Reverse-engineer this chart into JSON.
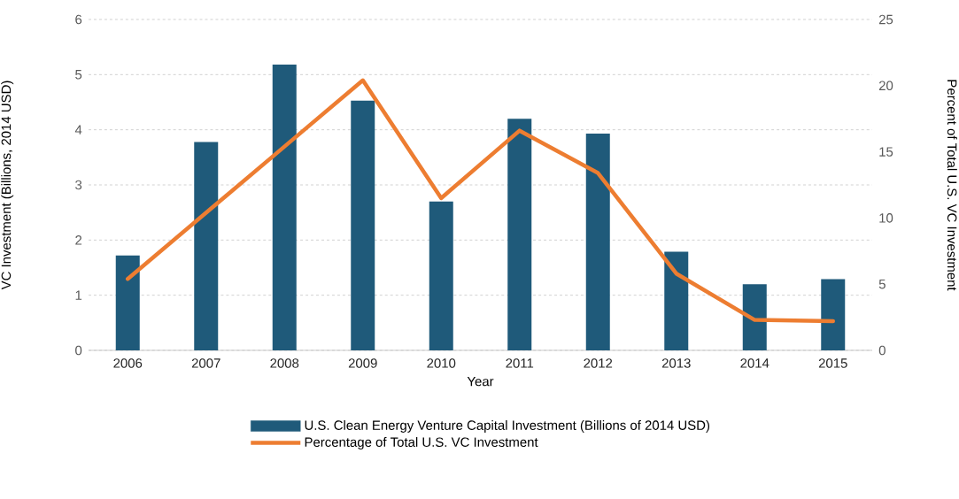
{
  "chart_data": {
    "type": "bar",
    "xlabel": "Year",
    "ylabel": "VC Investment (Billions, 2014 USD)",
    "y2label": "Percent of Total U.S. VC Investment",
    "categories": [
      "2006",
      "2007",
      "2008",
      "2009",
      "2010",
      "2011",
      "2012",
      "2013",
      "2014",
      "2015"
    ],
    "series": [
      {
        "name": "U.S. Clean Energy Venture Capital Investment (Billions of 2014 USD)",
        "color": "#1f5a7a",
        "values": [
          1.72,
          3.78,
          5.18,
          4.53,
          2.7,
          4.2,
          3.93,
          1.79,
          1.2,
          1.29
        ]
      },
      {
        "name": "Percentage of Total U.S. VC Investment",
        "type": "line",
        "axis": "y2",
        "color": "#ed7d31",
        "values": [
          5.4,
          10.4,
          15.4,
          20.4,
          11.5,
          16.6,
          13.4,
          5.8,
          2.3,
          2.2
        ]
      }
    ],
    "ylim": [
      0,
      6
    ],
    "yticks": [
      0,
      1,
      2,
      3,
      4,
      5,
      6
    ],
    "y2lim": [
      0,
      25
    ],
    "y2ticks": [
      0,
      5,
      10,
      15,
      20,
      25
    ],
    "grid": "y",
    "legend": "bottom",
    "marker": "none",
    "line_style": "solid"
  }
}
